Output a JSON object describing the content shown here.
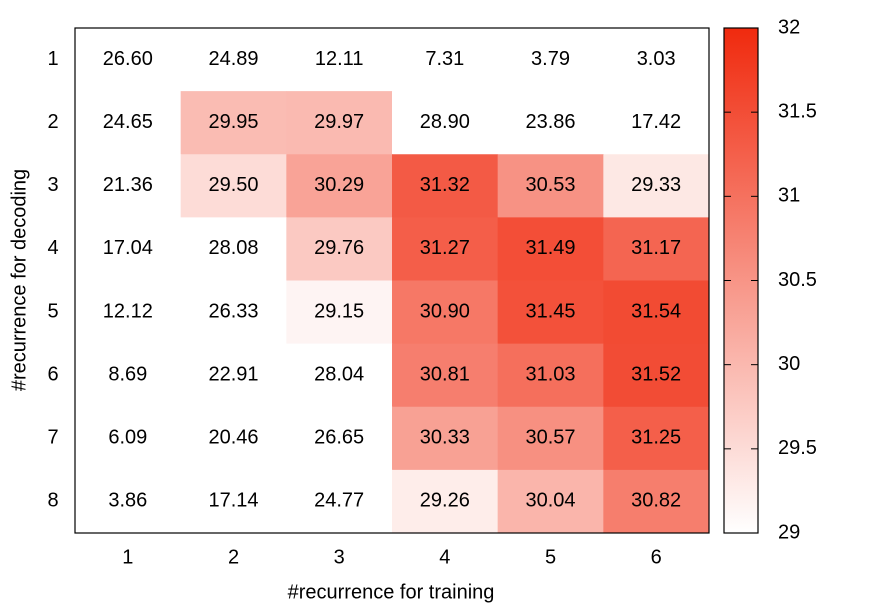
{
  "chart_data": {
    "type": "heatmap",
    "x_label": "#recurrence for training",
    "y_label": "#recurrence for decoding",
    "categories": [
      "1",
      "2",
      "3",
      "4",
      "5",
      "6"
    ],
    "y_categories": [
      "1",
      "2",
      "3",
      "4",
      "5",
      "6",
      "7",
      "8"
    ],
    "values": [
      [
        26.6,
        24.89,
        12.11,
        7.31,
        3.79,
        3.03
      ],
      [
        24.65,
        29.95,
        29.97,
        28.9,
        23.86,
        17.42
      ],
      [
        21.36,
        29.5,
        30.29,
        31.32,
        30.53,
        29.33
      ],
      [
        17.04,
        28.08,
        29.76,
        31.27,
        31.49,
        31.17
      ],
      [
        12.12,
        26.33,
        29.15,
        30.9,
        31.45,
        31.54
      ],
      [
        8.69,
        22.91,
        28.04,
        30.81,
        31.03,
        31.52
      ],
      [
        6.09,
        20.46,
        26.65,
        30.33,
        30.57,
        31.25
      ],
      [
        3.86,
        17.14,
        24.77,
        29.26,
        30.04,
        30.82
      ]
    ],
    "value_labels": [
      [
        "26.60",
        "24.89",
        "12.11",
        "7.31",
        "3.79",
        "3.03"
      ],
      [
        "24.65",
        "29.95",
        "29.97",
        "28.90",
        "23.86",
        "17.42"
      ],
      [
        "21.36",
        "29.50",
        "30.29",
        "31.32",
        "30.53",
        "29.33"
      ],
      [
        "17.04",
        "28.08",
        "29.76",
        "31.27",
        "31.49",
        "31.17"
      ],
      [
        "12.12",
        "26.33",
        "29.15",
        "30.90",
        "31.45",
        "31.54"
      ],
      [
        "8.69",
        "22.91",
        "28.04",
        "30.81",
        "31.03",
        "31.52"
      ],
      [
        "6.09",
        "20.46",
        "26.65",
        "30.33",
        "30.57",
        "31.25"
      ],
      [
        "3.86",
        "17.14",
        "24.77",
        "29.26",
        "30.04",
        "30.82"
      ]
    ],
    "zlim": [
      29,
      32
    ],
    "zticks": [
      29,
      29.5,
      30,
      30.5,
      31,
      31.5,
      32
    ],
    "colormap": [
      "#ffffff",
      "#f02a0e"
    ]
  }
}
